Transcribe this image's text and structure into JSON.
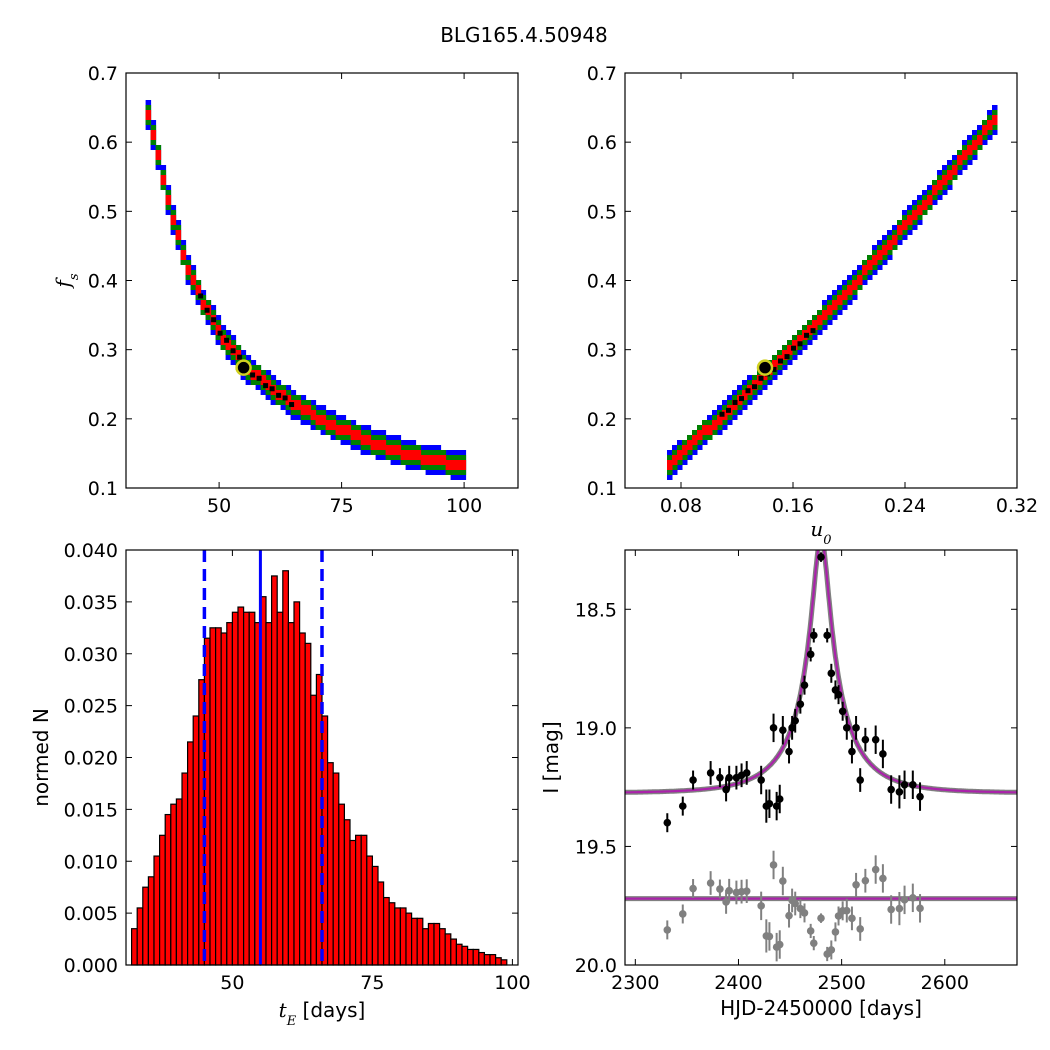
{
  "figure": {
    "suptitle": "BLG165.4.50948"
  },
  "chart_data": [
    {
      "id": "fs_vs_tE",
      "type": "heatmap",
      "xlabel": "",
      "ylabel": "f_s",
      "ylabel_sub": "s",
      "ylabel_main": "f",
      "xlim": [
        31,
        111
      ],
      "ylim": [
        0.1,
        0.7
      ],
      "xticks": [
        50,
        75,
        100
      ],
      "yticks": [
        0.1,
        0.2,
        0.3,
        0.4,
        0.5,
        0.6,
        0.7
      ],
      "ytick_labels": [
        "0.1",
        "0.2",
        "0.3",
        "0.4",
        "0.5",
        "0.6",
        "0.7"
      ],
      "grid": false,
      "confidence_colors": {
        "outer": "#0000ff",
        "mid": "#008000",
        "inner": "#ff0000",
        "peak": "#000000"
      },
      "ridge": [
        [
          35,
          0.64
        ],
        [
          38,
          0.55
        ],
        [
          40,
          0.49
        ],
        [
          43,
          0.42
        ],
        [
          46,
          0.37
        ],
        [
          50,
          0.32
        ],
        [
          55,
          0.274
        ],
        [
          60,
          0.245
        ],
        [
          65,
          0.22
        ],
        [
          70,
          0.2
        ],
        [
          75,
          0.183
        ],
        [
          80,
          0.168
        ],
        [
          85,
          0.155
        ],
        [
          90,
          0.145
        ],
        [
          95,
          0.138
        ],
        [
          100,
          0.13
        ]
      ],
      "best_fit": {
        "x": 55,
        "y": 0.274
      }
    },
    {
      "id": "fs_vs_u0",
      "type": "heatmap",
      "xlabel": "u_0",
      "xlabel_main": "u",
      "xlabel_sub": "0",
      "ylabel": "",
      "xlim": [
        0.04,
        0.32
      ],
      "ylim": [
        0.1,
        0.7
      ],
      "xticks": [
        0.08,
        0.16,
        0.24,
        0.32
      ],
      "xtick_labels": [
        "0.08",
        "0.16",
        "0.24",
        "0.32"
      ],
      "yticks": [
        0.1,
        0.2,
        0.3,
        0.4,
        0.5,
        0.6,
        0.7
      ],
      "ytick_labels": [
        "0.1",
        "0.2",
        "0.3",
        "0.4",
        "0.5",
        "0.6",
        "0.7"
      ],
      "grid": false,
      "confidence_colors": {
        "outer": "#0000ff",
        "mid": "#008000",
        "inner": "#ff0000",
        "peak": "#000000"
      },
      "ridge": [
        [
          0.07,
          0.132
        ],
        [
          0.1,
          0.19
        ],
        [
          0.13,
          0.245
        ],
        [
          0.15,
          0.285
        ],
        [
          0.17,
          0.325
        ],
        [
          0.2,
          0.39
        ],
        [
          0.23,
          0.46
        ],
        [
          0.26,
          0.53
        ],
        [
          0.285,
          0.59
        ],
        [
          0.305,
          0.64
        ]
      ],
      "best_fit": {
        "x": 0.14,
        "y": 0.274
      }
    },
    {
      "id": "tE_histogram",
      "type": "bar",
      "xlabel_math": "t",
      "xlabel_sub": "E",
      "xlabel_rest": " [days]",
      "ylabel": "normed N",
      "xlim": [
        31,
        101
      ],
      "ylim": [
        0.0,
        0.04
      ],
      "xticks": [
        50,
        75,
        100
      ],
      "yticks": [
        0.0,
        0.005,
        0.01,
        0.015,
        0.02,
        0.025,
        0.03,
        0.035,
        0.04
      ],
      "ytick_labels": [
        "0.000",
        "0.005",
        "0.010",
        "0.015",
        "0.020",
        "0.025",
        "0.030",
        "0.035",
        "0.040"
      ],
      "grid": false,
      "bar_color": "#ff0000",
      "bin_start": 32,
      "bin_width": 1,
      "values": [
        0.0035,
        0.0055,
        0.0075,
        0.0085,
        0.0105,
        0.0125,
        0.0145,
        0.0155,
        0.016,
        0.0185,
        0.0215,
        0.024,
        0.0275,
        0.0315,
        0.0325,
        0.0325,
        0.032,
        0.033,
        0.034,
        0.0345,
        0.034,
        0.034,
        0.033,
        0.0355,
        0.033,
        0.0375,
        0.034,
        0.038,
        0.033,
        0.035,
        0.032,
        0.031,
        0.026,
        0.028,
        0.024,
        0.0195,
        0.0185,
        0.0155,
        0.014,
        0.012,
        0.0125,
        0.0125,
        0.0105,
        0.0095,
        0.008,
        0.0065,
        0.006,
        0.0055,
        0.0055,
        0.005,
        0.0045,
        0.0045,
        0.0035,
        0.004,
        0.004,
        0.0035,
        0.003,
        0.0025,
        0.002,
        0.0018,
        0.0015,
        0.0015,
        0.0012,
        0.001,
        0.001,
        0.0007,
        0.0005
      ],
      "median_line": 55,
      "interval_lines": [
        45,
        66
      ],
      "line_color": "#0000ff"
    },
    {
      "id": "light_curve",
      "type": "scatter",
      "xlabel": "HJD-2450000 [days]",
      "ylabel": "I [mag]",
      "xlim": [
        2290,
        2670
      ],
      "ylim": [
        20.0,
        18.25
      ],
      "inverted_y": true,
      "xticks": [
        2300,
        2400,
        2500,
        2600
      ],
      "yticks": [
        18.5,
        19.0,
        19.5,
        20.0
      ],
      "ytick_labels": [
        "18.5",
        "19.0",
        "19.5",
        "20.0"
      ],
      "grid": false,
      "model": {
        "t0": 2480,
        "tau": 55,
        "u0": 0.14,
        "fs": 0.274,
        "baseline": 19.275,
        "color": "#aa22aa"
      },
      "residual_offset": 19.72,
      "data_color": "#000000",
      "residual_color": "#808080",
      "series": [
        {
          "name": "",
          "points": [
            [
              2331,
              19.4,
              0.04
            ],
            [
              2346,
              19.33,
              0.04
            ],
            [
              2356,
              19.22,
              0.04
            ],
            [
              2373,
              19.19,
              0.05
            ],
            [
              2382,
              19.21,
              0.04
            ],
            [
              2388,
              19.26,
              0.05
            ],
            [
              2391,
              19.21,
              0.05
            ],
            [
              2398,
              19.21,
              0.05
            ],
            [
              2403,
              19.2,
              0.05
            ],
            [
              2408,
              19.19,
              0.05
            ],
            [
              2422,
              19.22,
              0.06
            ],
            [
              2427,
              19.33,
              0.07
            ],
            [
              2430,
              19.32,
              0.06
            ],
            [
              2434,
              19.0,
              0.06
            ],
            [
              2437,
              19.33,
              0.06
            ],
            [
              2440,
              19.3,
              0.06
            ],
            [
              2443,
              19.01,
              0.06
            ],
            [
              2449,
              19.1,
              0.05
            ],
            [
              2452,
              19.0,
              0.05
            ],
            [
              2455,
              18.97,
              0.05
            ],
            [
              2460,
              18.9,
              0.04
            ],
            [
              2464,
              18.82,
              0.04
            ],
            [
              2470,
              18.69,
              0.03
            ],
            [
              2473,
              18.61,
              0.03
            ],
            [
              2480,
              18.28,
              0.02
            ],
            [
              2486,
              18.61,
              0.03
            ],
            [
              2490,
              18.77,
              0.04
            ],
            [
              2494,
              18.84,
              0.04
            ],
            [
              2497,
              18.86,
              0.04
            ],
            [
              2501,
              18.93,
              0.04
            ],
            [
              2505,
              19.0,
              0.05
            ],
            [
              2510,
              19.1,
              0.05
            ],
            [
              2514,
              19.0,
              0.05
            ],
            [
              2518,
              19.22,
              0.05
            ],
            [
              2523,
              19.05,
              0.05
            ],
            [
              2533,
              19.05,
              0.06
            ],
            [
              2540,
              19.11,
              0.06
            ],
            [
              2548,
              19.26,
              0.06
            ],
            [
              2556,
              19.27,
              0.07
            ],
            [
              2561,
              19.24,
              0.06
            ],
            [
              2569,
              19.24,
              0.06
            ],
            [
              2576,
              19.29,
              0.06
            ]
          ]
        }
      ]
    }
  ]
}
